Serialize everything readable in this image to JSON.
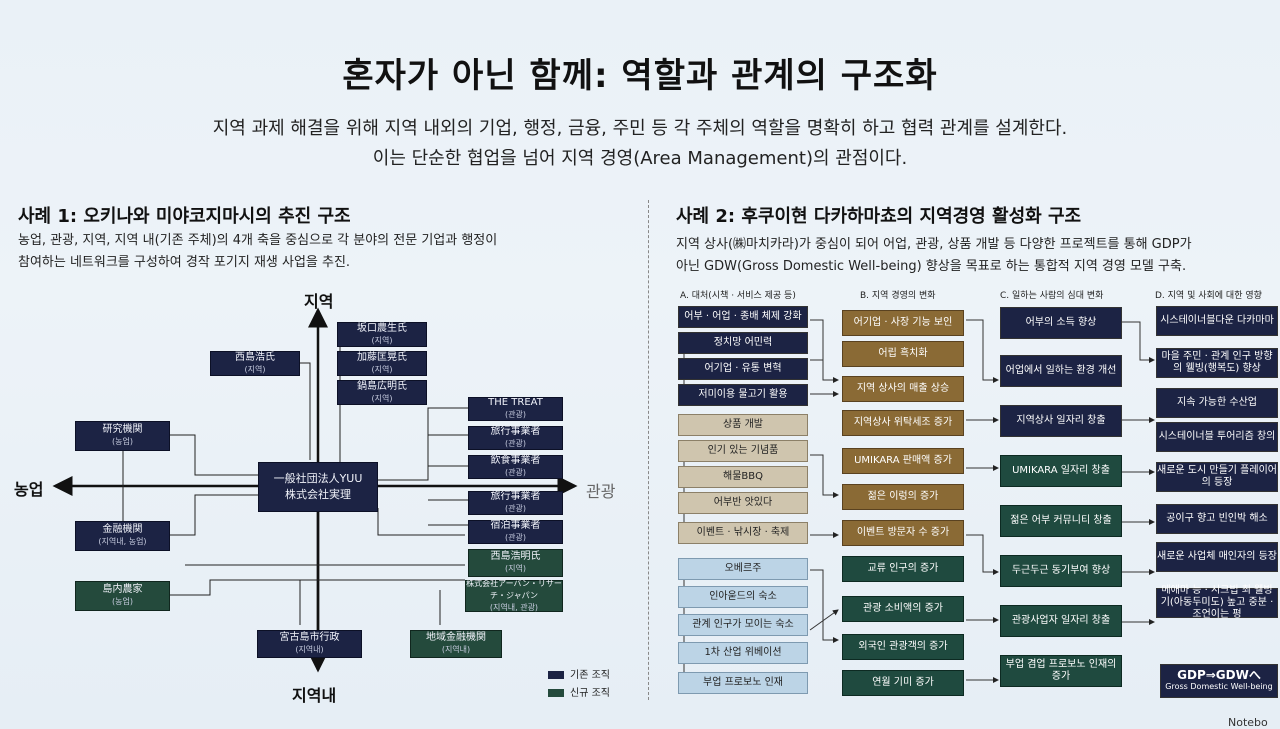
{
  "header": {
    "title": "혼자가 아닌 함께: 역할과 관계의 구조화",
    "subtitle_line1": "지역 과제 해결을 위해 지역 내외의 기업, 행정, 금융, 주민 등 각 주체의 역할을 명확히 하고 협력 관계를 설계한다.",
    "subtitle_line2": "이는 단순한 협업을 넘어 지역 경영(Area Management)의 관점이다."
  },
  "case1": {
    "title": "사례 1: 오키나와 미야코지마시의 추진 구조",
    "desc_line1": "농업, 관광, 지역, 지역 내(기존 주체)의 4개 축을 중심으로 각 분야의 전문 기업과 행정이",
    "desc_line2": "참여하는 네트워크를 구성하여 경작 포기지 재생 사업을 추진.",
    "axes": {
      "top": "지역",
      "bottom": "지역내",
      "left": "농업",
      "right": "관광"
    },
    "center": {
      "line1": "一般社団法人YUU",
      "line2": "株式会社実理"
    },
    "nodes": [
      {
        "id": "n1",
        "name": "坂口農生氏",
        "sub": "(지역)"
      },
      {
        "id": "n2",
        "name": "加藤匡晃氏",
        "sub": "(지역)"
      },
      {
        "id": "n3",
        "name": "鍋島広明氏",
        "sub": "(지역)"
      },
      {
        "id": "n4",
        "name": "西島浩氏",
        "sub": "(지역)"
      },
      {
        "id": "n5",
        "name": "研究機関",
        "sub": "(농업)"
      },
      {
        "id": "n6",
        "name": "金融機関",
        "sub": "(지역내, 농업)"
      },
      {
        "id": "n7",
        "name": "島内農家",
        "sub": "(농업)"
      },
      {
        "id": "n8",
        "name": "THE TREAT",
        "sub": "(관광)"
      },
      {
        "id": "n9",
        "name": "旅行事業者",
        "sub": "(관광)"
      },
      {
        "id": "n10",
        "name": "飲食事業者",
        "sub": "(관광)"
      },
      {
        "id": "n11",
        "name": "旅行事業者",
        "sub": "(관광)"
      },
      {
        "id": "n12",
        "name": "宿泊事業者",
        "sub": "(관광)"
      },
      {
        "id": "n13",
        "name": "西島浩明氏",
        "sub": "(지역)"
      },
      {
        "id": "n14",
        "name": "株式会社アーバン・リサーチ・ジャパン",
        "sub": "(지역내, 관광)"
      },
      {
        "id": "n15",
        "name": "宮古島市行政",
        "sub": "(지역내)"
      },
      {
        "id": "n16",
        "name": "地域金融機関",
        "sub": "(지역내)"
      }
    ],
    "legend": {
      "existing": "기존 조직",
      "new": "신규 조직"
    },
    "colors": {
      "existing": "#1c2344",
      "new": "#244a3c"
    }
  },
  "case2": {
    "title": "사례 2: 후쿠이현 다카하마쵸의 지역경영 활성화 구조",
    "desc_line1": "지역 상사(㈱마치카라)가 중심이 되어 어업, 관광, 상품 개발 등 다양한 프로젝트를 통해 GDP가",
    "desc_line2": "아닌 GDW(Gross Domestic Well-being) 향상을 목표로 하는 통합적 지역 경영 모델 구축.",
    "columns": [
      "A. 대처(시책 · 서비스 제공 등)",
      "B. 지역 경영의 변화",
      "C. 일하는 사람의 심대 변화",
      "D. 지역 및 사회에 대한 영향"
    ],
    "colA": [
      {
        "text": "어부 · 어업 · 종배 체제 강화",
        "style": "navy"
      },
      {
        "text": "정치망 어민력",
        "style": "navy"
      },
      {
        "text": "어기업 · 유통 변혁",
        "style": "navy"
      },
      {
        "text": "저미이용 물고기 활용",
        "style": "navy"
      },
      {
        "text": "상품 개발",
        "style": "tan"
      },
      {
        "text": "인기 있는 기념품",
        "style": "tan"
      },
      {
        "text": "해물BBQ",
        "style": "tan"
      },
      {
        "text": "어부반 앗있다",
        "style": "tan"
      },
      {
        "text": "이벤트 · 낚시장 · 축제",
        "style": "tan"
      },
      {
        "text": "오베르주",
        "style": "lblue"
      },
      {
        "text": "인아욷드의 숙소",
        "style": "lblue"
      },
      {
        "text": "관계 인구가 모이는 숙소",
        "style": "lblue"
      },
      {
        "text": "1차 산업 위베이션",
        "style": "lblue"
      },
      {
        "text": "부업 프로보노 인재",
        "style": "lblue"
      }
    ],
    "colB": [
      {
        "text": "어기업 · 사장 기능 보인",
        "style": "brown"
      },
      {
        "text": "어립 흑치화",
        "style": "brown"
      },
      {
        "text": "지역 상사의 매출 상승",
        "style": "brown"
      },
      {
        "text": "지역상사 위탁세조 증가",
        "style": "brown"
      },
      {
        "text": "UMIKARA 판매액 증가",
        "style": "brown"
      },
      {
        "text": "젊은 이렁의 증가",
        "style": "brown"
      },
      {
        "text": "이벤트 방문자 수 증가",
        "style": "brown"
      },
      {
        "text": "교류 인구의 증가",
        "style": "teal"
      },
      {
        "text": "관광 소비액의 증가",
        "style": "teal"
      },
      {
        "text": "외국인 관광객의 증가",
        "style": "teal"
      },
      {
        "text": "연월 기미 증가",
        "style": "teal"
      }
    ],
    "colC": [
      {
        "text": "어부의 소득 향상",
        "style": "navy"
      },
      {
        "text": "어업에서 일하는 환경 개선",
        "style": "navy"
      },
      {
        "text": "지역상사 일자리 창출",
        "style": "navy"
      },
      {
        "text": "UMIKARA 일자리 창출",
        "style": "teal"
      },
      {
        "text": "젊은 어부 커뮤니티 창출",
        "style": "teal"
      },
      {
        "text": "두근두근 동기부여 향상",
        "style": "teal"
      },
      {
        "text": "관광사업자 일자리 창출",
        "style": "teal"
      },
      {
        "text": "부업 겸업 프로보노 인재의 증가",
        "style": "teal"
      }
    ],
    "colD": [
      {
        "text": "시스테이너블다운 다카마마",
        "style": "navy"
      },
      {
        "text": "마을 주민 · 관계 인구 방향의 웰빙(행복도) 향상",
        "style": "navy"
      },
      {
        "text": "지속 가능한 수산업",
        "style": "navy"
      },
      {
        "text": "시스테이너블 투어리즘 창의",
        "style": "navy"
      },
      {
        "text": "새로운 도시 만들기 플레이어의 등장",
        "style": "navy"
      },
      {
        "text": "공이구 향고 빈인박 해소",
        "style": "navy"
      },
      {
        "text": "새로운 사업체 매인자의 등장",
        "style": "navy"
      },
      {
        "text": "메애마 능 · 시크빕 최 웰빙기(아동두미도) 높고 중분 · 조언이는 평",
        "style": "navy"
      }
    ],
    "gdw": {
      "main": "GDP⇒GDWへ",
      "sub": "Gross Domestic Well-being"
    }
  },
  "watermark": "Notebo"
}
